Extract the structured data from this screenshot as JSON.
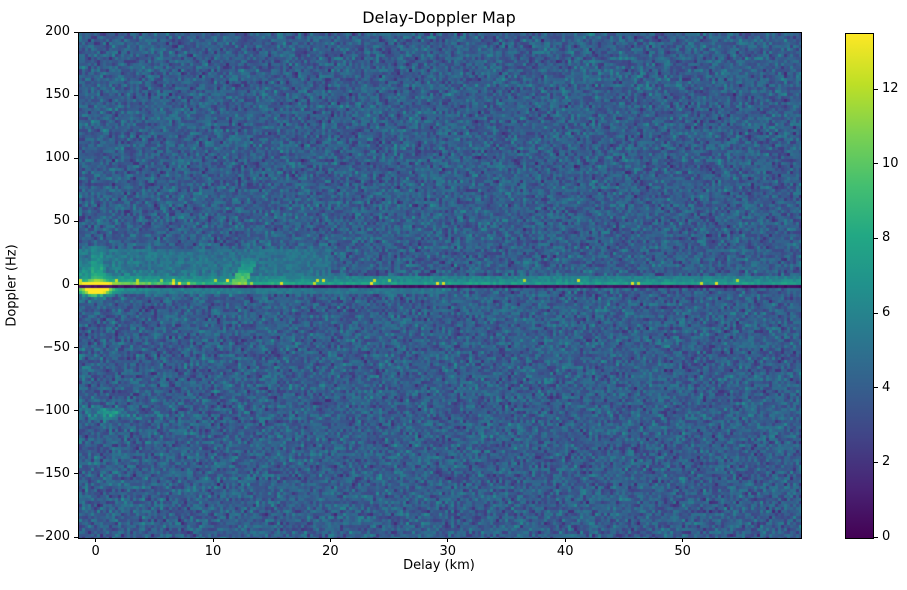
{
  "title": "Delay-Doppler Map",
  "chart_data": {
    "type": "heatmap",
    "title": "Delay-Doppler Map",
    "xlabel": "Delay (km)",
    "ylabel": "Doppler (Hz)",
    "x_range_km": [
      -1.5,
      60
    ],
    "y_range_hz": [
      -200,
      200
    ],
    "x_ticks": [
      0,
      10,
      20,
      30,
      40,
      50
    ],
    "y_ticks": [
      200,
      150,
      100,
      50,
      0,
      -50,
      -100,
      -150,
      -200
    ],
    "grid": false,
    "colormap": "viridis",
    "value_range": [
      0,
      13.5
    ],
    "colorbar_ticks": [
      0,
      2,
      4,
      6,
      8,
      10,
      12
    ],
    "colorbar_position": "right",
    "background_noise": {
      "mean": 4.0,
      "spread": 1.0,
      "description": "speckled dark blue-teal noise floor covering the whole map"
    },
    "features": [
      {
        "name": "zero-doppler-null-line",
        "description": "thin near-black horizontal line at 0 Hz across all delays",
        "doppler_hz": 0,
        "delay_km": [
          -1.5,
          60
        ],
        "value": 0.5,
        "half_width_hz": 1.2
      },
      {
        "name": "clutter-ridge-above-line",
        "description": "bright green-yellow ridge just above 0 Hz, fading with delay but visible to the right edge",
        "doppler_hz": [
          1.2,
          8
        ],
        "delay_km": [
          -1.5,
          60
        ],
        "base_value": 4.8,
        "amp_near": 4.5,
        "amp_far": 1.8,
        "delay_decay_km": 9,
        "doppler_decay_hz": 3,
        "hotspot_prob": 0.16,
        "hotspot_decay_km": 20,
        "hotspot_value": 10.5
      },
      {
        "name": "clutter-below-line",
        "description": "weaker green band just below 0 Hz at short delays",
        "doppler_hz": [
          -6,
          -1.2
        ],
        "delay_km": [
          -1.5,
          30
        ],
        "base_value": 4.5,
        "amp": 3.5,
        "delay_decay_km": 6,
        "doppler_decay_hz": 4
      },
      {
        "name": "clutter-fan",
        "description": "speckled elevated returns 0-30 Hz above the line at delays under ~20 km",
        "doppler_hz": [
          1.2,
          30
        ],
        "delay_km": [
          -1.5,
          20
        ],
        "amp": 5.0,
        "delay_decay_km": 7,
        "doppler_decay_hz": 12
      },
      {
        "name": "direct-signal-blob",
        "description": "saturated yellow blob at ~0 km delay just below the null line",
        "delay_km": 0,
        "doppler_hz": -2,
        "peak_add": 14.5,
        "sigma_delay": 1.1,
        "sigma_doppler": 26
      },
      {
        "name": "vertical-streak-0km",
        "description": "green vertical streak at 0 km from ~0 to +30 Hz",
        "delay_km": 0,
        "doppler_hz": [
          1.2,
          32
        ],
        "base_value": 8.6,
        "doppler_slope": 0.12,
        "half_width_km": 0.55
      },
      {
        "name": "tilted-streak-12km",
        "description": "bright streak at ~12 km leaning slightly right up to ~+26 Hz",
        "delay_km": 12,
        "doppler_hz": [
          1.2,
          27
        ],
        "base_value": 10.8,
        "doppler_slope": 0.28,
        "tilt_km_per_hz": 0.055,
        "half_width_km": 0.65
      },
      {
        "name": "weak-echo-minus100hz",
        "description": "faint teal smudge near -100 Hz at ~1 km delay",
        "delay_km": 1,
        "doppler_hz": -100,
        "peak_add": 3.4,
        "sigma_delay": 2.2,
        "sigma_doppler": 14
      }
    ]
  }
}
